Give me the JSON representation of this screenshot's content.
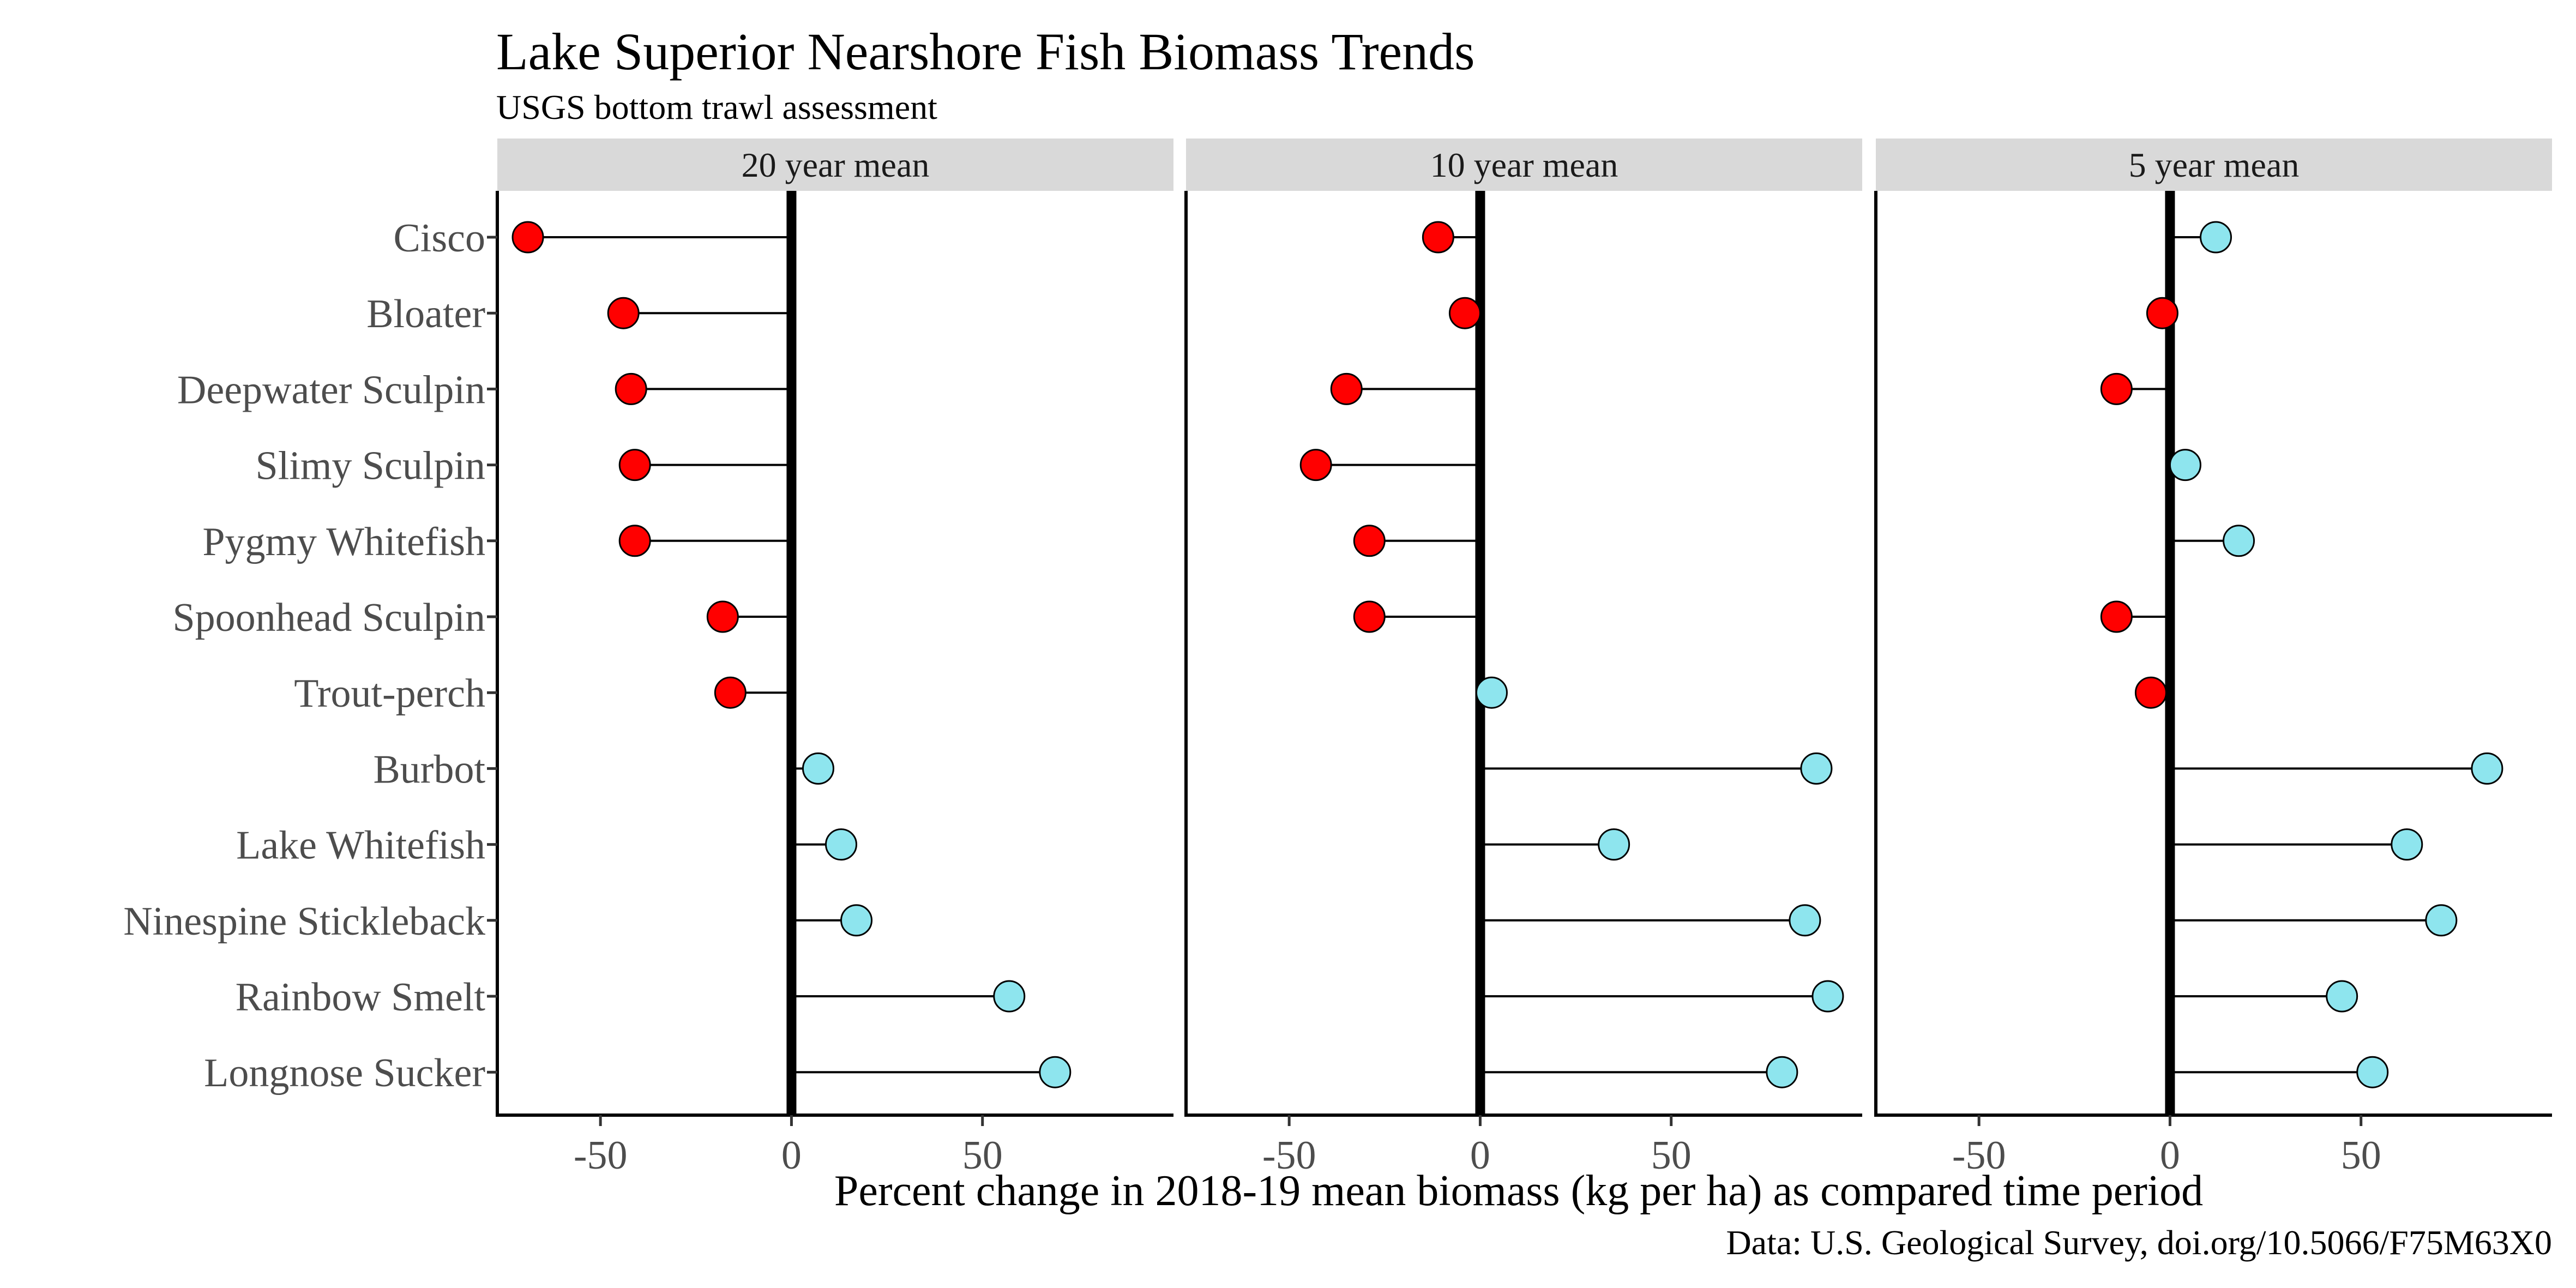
{
  "chart_data": {
    "type": "lollipop",
    "title": "Lake Superior Nearshore Fish Biomass Trends",
    "subtitle": "USGS bottom trawl assessment",
    "xlabel": "Percent change in 2018-19 mean biomass (kg per ha) as compared time period",
    "caption": "Data: U.S. Geological Survey, doi.org/10.5066/F75M63X0",
    "xlim": [
      -77,
      100
    ],
    "xticks": [
      -50,
      0,
      50
    ],
    "xtick_labels": [
      "-50",
      "0",
      "50"
    ],
    "zero_line": true,
    "grid": false,
    "colors": {
      "negative": "#ff0000",
      "positive": "#8ee5ee",
      "strip": "#d9d9d9",
      "axis": "#000000"
    },
    "categories": [
      "Cisco",
      "Bloater",
      "Deepwater Sculpin",
      "Slimy Sculpin",
      "Pygmy Whitefish",
      "Spoonhead Sculpin",
      "Trout-perch",
      "Burbot",
      "Lake Whitefish",
      "Ninespine Stickleback",
      "Rainbow Smelt",
      "Longnose Sucker"
    ],
    "panels": [
      {
        "name": "20 year mean",
        "values": [
          -69,
          -44,
          -42,
          -41,
          -41,
          -18,
          -16,
          7,
          13,
          17,
          57,
          69
        ]
      },
      {
        "name": "10 year mean",
        "values": [
          -11,
          -4,
          -35,
          -43,
          -29,
          -29,
          3,
          88,
          35,
          85,
          91,
          79
        ]
      },
      {
        "name": "5 year mean",
        "values": [
          12,
          -2,
          -14,
          4,
          18,
          -14,
          -5,
          83,
          62,
          71,
          45,
          53
        ]
      }
    ]
  }
}
